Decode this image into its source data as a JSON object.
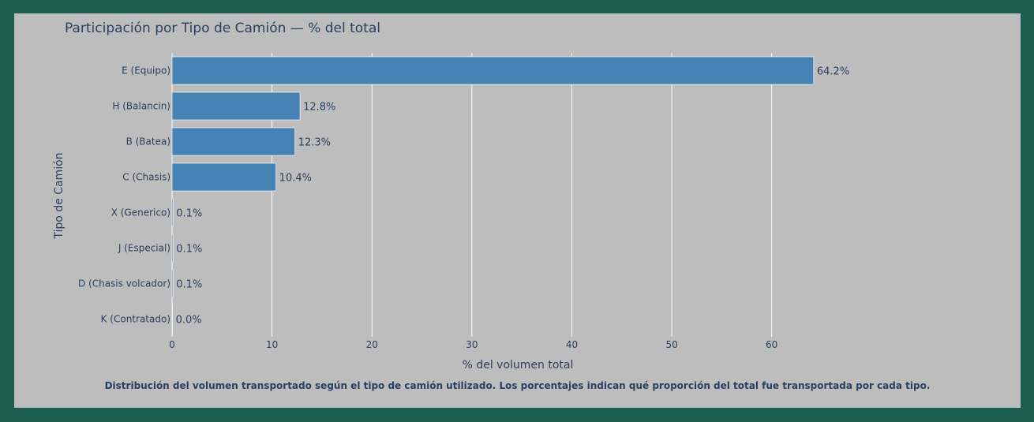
{
  "caption": "Distribución del volumen transportado según el tipo de camión utilizado. Los porcentajes indican qué proporción del total fue transportada por cada tipo.",
  "colors": {
    "outer_background": "#1b5e4f",
    "plot_background": "#bdbdbd",
    "bar": "#4682b4",
    "text": "#2a3f5f",
    "grid": "#ffffff"
  },
  "chart_data": {
    "type": "bar",
    "orientation": "horizontal",
    "title": "Participación por Tipo de Camión — % del total",
    "xlabel": "% del volumen total",
    "ylabel": "Tipo de Camión",
    "xlim": [
      0,
      66.5
    ],
    "xticks": [
      0,
      10,
      20,
      30,
      40,
      50,
      60
    ],
    "grid": true,
    "categories": [
      "E (Equipo)",
      "H (Balancin)",
      "B (Batea)",
      "C (Chasis)",
      "X (Generico)",
      "J (Especial)",
      "D (Chasis volcador)",
      "K (Contratado)"
    ],
    "values": [
      64.2,
      12.8,
      12.3,
      10.4,
      0.1,
      0.1,
      0.1,
      0.0
    ],
    "value_labels": [
      "64.2%",
      "12.8%",
      "12.3%",
      "10.4%",
      "0.1%",
      "0.1%",
      "0.1%",
      "0.0%"
    ]
  }
}
